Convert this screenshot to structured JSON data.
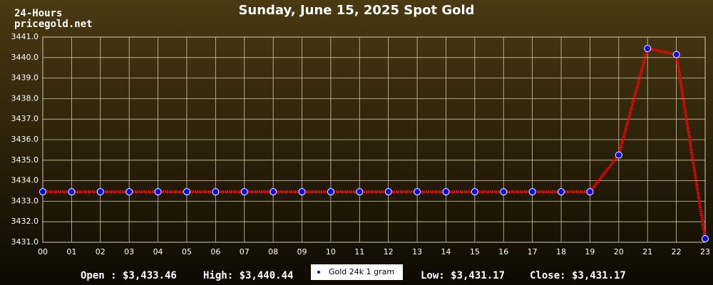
{
  "chart_data": {
    "type": "line",
    "title": "Sunday, June 15, 2025 Spot Gold",
    "subtitle": "24-Hours",
    "source": "pricegold.net",
    "categories": [
      "00",
      "01",
      "02",
      "03",
      "04",
      "05",
      "06",
      "07",
      "08",
      "09",
      "10",
      "11",
      "12",
      "13",
      "14",
      "15",
      "16",
      "17",
      "18",
      "19",
      "20",
      "21",
      "22",
      "23"
    ],
    "series": [
      {
        "name": "Gold 24k 1 gram",
        "color": "#ff0000",
        "marker_color": "#0000ff",
        "values": [
          3433.46,
          3433.46,
          3433.46,
          3433.46,
          3433.46,
          3433.46,
          3433.46,
          3433.46,
          3433.46,
          3433.46,
          3433.46,
          3433.46,
          3433.46,
          3433.46,
          3433.46,
          3433.46,
          3433.46,
          3433.46,
          3433.46,
          3433.46,
          3435.25,
          3440.44,
          3440.15,
          3431.17
        ]
      }
    ],
    "ylim": [
      3431,
      3441
    ],
    "yticks": [
      {
        "value": 3431,
        "label": "3431.0"
      },
      {
        "value": 3432,
        "label": "3432.0"
      },
      {
        "value": 3433,
        "label": "3433.0"
      },
      {
        "value": 3434,
        "label": "3434.0"
      },
      {
        "value": 3435,
        "label": "3435.0"
      },
      {
        "value": 3436,
        "label": "3436.0"
      },
      {
        "value": 3437,
        "label": "3437.0"
      },
      {
        "value": 3438,
        "label": "3438.0"
      },
      {
        "value": 3439,
        "label": "3439.0"
      },
      {
        "value": 3440,
        "label": "3440.0"
      },
      {
        "value": 3441,
        "label": "3441.0"
      }
    ],
    "grid": true,
    "stats": [
      "Open : $3,433.46",
      "High: $3,440.44",
      "Low: $3,431.17",
      "Close: $3,431.17"
    ]
  }
}
